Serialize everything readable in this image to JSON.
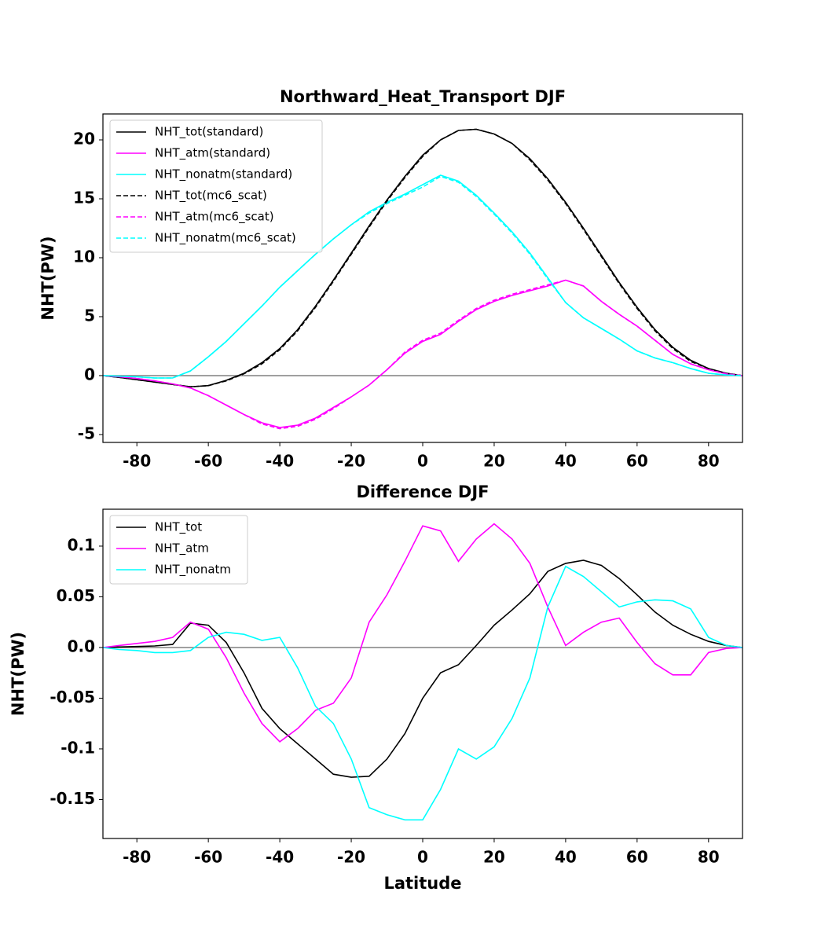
{
  "chart_data": [
    {
      "type": "line",
      "title": "Northward_Heat_Transport DJF",
      "ylabel": "NHT(PW)",
      "x": [
        -89.5,
        -85,
        -80,
        -75,
        -70,
        -65,
        -60,
        -55,
        -50,
        -45,
        -40,
        -35,
        -30,
        -25,
        -20,
        -15,
        -10,
        -5,
        0,
        5,
        10,
        15,
        20,
        25,
        30,
        35,
        40,
        45,
        50,
        55,
        60,
        65,
        70,
        75,
        80,
        85,
        89.5
      ],
      "xlim": [
        -89.5,
        89.5
      ],
      "xticks": [
        -80,
        -60,
        -40,
        -20,
        0,
        20,
        40,
        60,
        80
      ],
      "ylim": [
        -5.67,
        22.2
      ],
      "yticks": [
        -5,
        0,
        5,
        10,
        15,
        20
      ],
      "zero_line": true,
      "legend": "upper-left",
      "series": [
        {
          "name": "NHT_tot(standard)",
          "color": "#000000",
          "linestyle": "solid",
          "values": [
            0,
            -0.15,
            -0.35,
            -0.55,
            -0.75,
            -0.95,
            -0.85,
            -0.4,
            0.2,
            1.1,
            2.3,
            3.9,
            5.9,
            8.1,
            10.4,
            12.7,
            14.9,
            16.9,
            18.7,
            20,
            20.8,
            20.9,
            20.5,
            19.7,
            18.4,
            16.7,
            14.7,
            12.5,
            10.2,
            7.9,
            5.8,
            3.9,
            2.4,
            1.3,
            0.6,
            0.2,
            0
          ]
        },
        {
          "name": "NHT_atm(standard)",
          "color": "#ff00ff",
          "linestyle": "solid",
          "values": [
            0,
            -0.1,
            -0.25,
            -0.45,
            -0.7,
            -1.05,
            -1.7,
            -2.5,
            -3.3,
            -4.0,
            -4.4,
            -4.2,
            -3.6,
            -2.7,
            -1.8,
            -0.8,
            0.5,
            1.9,
            2.9,
            3.5,
            4.6,
            5.6,
            6.3,
            6.8,
            7.2,
            7.6,
            8.1,
            7.6,
            6.3,
            5.2,
            4.2,
            3.0,
            1.8,
            1.0,
            0.5,
            0.15,
            0
          ]
        },
        {
          "name": "NHT_nonatm(standard)",
          "color": "#00ffff",
          "linestyle": "solid",
          "values": [
            0,
            -0.05,
            -0.1,
            -0.2,
            -0.2,
            0.4,
            1.6,
            2.9,
            4.4,
            5.9,
            7.5,
            8.9,
            10.3,
            11.6,
            12.8,
            13.9,
            14.7,
            15.4,
            16.2,
            17,
            16.5,
            15.3,
            13.8,
            12.2,
            10.4,
            8.3,
            6.2,
            4.9,
            4.0,
            3.1,
            2.1,
            1.5,
            1.1,
            0.6,
            0.2,
            0.05,
            0
          ]
        },
        {
          "name": "NHT_tot(mc6_scat)",
          "color": "#000000",
          "linestyle": "dashed",
          "values": [
            0,
            -0.15,
            -0.35,
            -0.55,
            -0.75,
            -0.95,
            -0.85,
            -0.45,
            0.15,
            1.0,
            2.2,
            3.8,
            5.8,
            8.0,
            10.3,
            12.6,
            14.8,
            16.8,
            18.6,
            20,
            20.8,
            20.9,
            20.5,
            19.7,
            18.3,
            16.6,
            14.6,
            12.4,
            10.1,
            7.8,
            5.7,
            3.8,
            2.3,
            1.2,
            0.6,
            0.2,
            0
          ]
        },
        {
          "name": "NHT_atm(mc6_scat)",
          "color": "#ff00ff",
          "linestyle": "dashed",
          "values": [
            0,
            -0.1,
            -0.25,
            -0.45,
            -0.7,
            -1.05,
            -1.7,
            -2.5,
            -3.3,
            -4.1,
            -4.5,
            -4.3,
            -3.7,
            -2.8,
            -1.8,
            -0.8,
            0.5,
            2.0,
            3.0,
            3.6,
            4.7,
            5.7,
            6.4,
            6.9,
            7.3,
            7.7,
            8.1,
            7.6,
            6.3,
            5.2,
            4.2,
            3.0,
            1.8,
            1.0,
            0.5,
            0.15,
            0
          ]
        },
        {
          "name": "NHT_nonatm(mc6_scat)",
          "color": "#00ffff",
          "linestyle": "dashed",
          "values": [
            0,
            -0.05,
            -0.1,
            -0.2,
            -0.2,
            0.4,
            1.6,
            2.9,
            4.4,
            5.9,
            7.5,
            8.9,
            10.3,
            11.6,
            12.8,
            13.8,
            14.6,
            15.3,
            16.0,
            16.9,
            16.4,
            15.2,
            13.7,
            12.1,
            10.3,
            8.2,
            6.2,
            4.9,
            4.0,
            3.1,
            2.1,
            1.5,
            1.1,
            0.6,
            0.2,
            0.05,
            0
          ]
        }
      ]
    },
    {
      "type": "line",
      "title": "Difference DJF",
      "xlabel": "Latitude",
      "ylabel": "NHT(PW)",
      "x": [
        -89.5,
        -85,
        -80,
        -75,
        -70,
        -65,
        -60,
        -55,
        -50,
        -45,
        -40,
        -35,
        -30,
        -25,
        -20,
        -15,
        -10,
        -5,
        0,
        5,
        10,
        15,
        20,
        25,
        30,
        35,
        40,
        45,
        50,
        55,
        60,
        65,
        70,
        75,
        80,
        85,
        89.5
      ],
      "xlim": [
        -89.5,
        89.5
      ],
      "xticks": [
        -80,
        -60,
        -40,
        -20,
        0,
        20,
        40,
        60,
        80
      ],
      "ylim": [
        -0.1884,
        0.1364
      ],
      "yticks": [
        -0.15,
        -0.1,
        -0.05,
        {
          "value": 0,
          "label": "0.0"
        },
        0.05,
        0.1
      ],
      "zero_line": true,
      "legend": "upper-left",
      "series": [
        {
          "name": "NHT_tot",
          "color": "#000000",
          "linestyle": "solid",
          "values": [
            0,
            0.0005,
            0.001,
            0.0015,
            0.003,
            0.024,
            0.022,
            0.005,
            -0.025,
            -0.06,
            -0.08,
            -0.095,
            -0.11,
            -0.125,
            -0.128,
            -0.127,
            -0.11,
            -0.085,
            -0.05,
            -0.025,
            -0.017,
            0.002,
            0.022,
            0.037,
            0.053,
            0.075,
            0.083,
            0.086,
            0.081,
            0.068,
            0.052,
            0.035,
            0.022,
            0.013,
            0.006,
            0.002,
            0
          ]
        },
        {
          "name": "NHT_atm",
          "color": "#ff00ff",
          "linestyle": "solid",
          "values": [
            0,
            0.002,
            0.004,
            0.006,
            0.01,
            0.025,
            0.018,
            -0.01,
            -0.045,
            -0.075,
            -0.093,
            -0.08,
            -0.062,
            -0.055,
            -0.03,
            0.025,
            0.052,
            0.085,
            0.12,
            0.115,
            0.085,
            0.107,
            0.122,
            0.107,
            0.083,
            0.04,
            0.002,
            0.015,
            0.025,
            0.029,
            0.005,
            -0.016,
            -0.027,
            -0.027,
            -0.005,
            -0.001,
            0
          ]
        },
        {
          "name": "NHT_nonatm",
          "color": "#00ffff",
          "linestyle": "solid",
          "values": [
            0,
            -0.002,
            -0.003,
            -0.005,
            -0.005,
            -0.003,
            0.01,
            0.015,
            0.013,
            0.007,
            0.01,
            -0.02,
            -0.058,
            -0.075,
            -0.11,
            -0.158,
            -0.165,
            -0.17,
            -0.17,
            -0.14,
            -0.1,
            -0.11,
            -0.098,
            -0.07,
            -0.03,
            0.04,
            0.08,
            0.07,
            0.055,
            0.04,
            0.045,
            0.047,
            0.046,
            0.038,
            0.01,
            0.002,
            0
          ]
        }
      ]
    }
  ]
}
